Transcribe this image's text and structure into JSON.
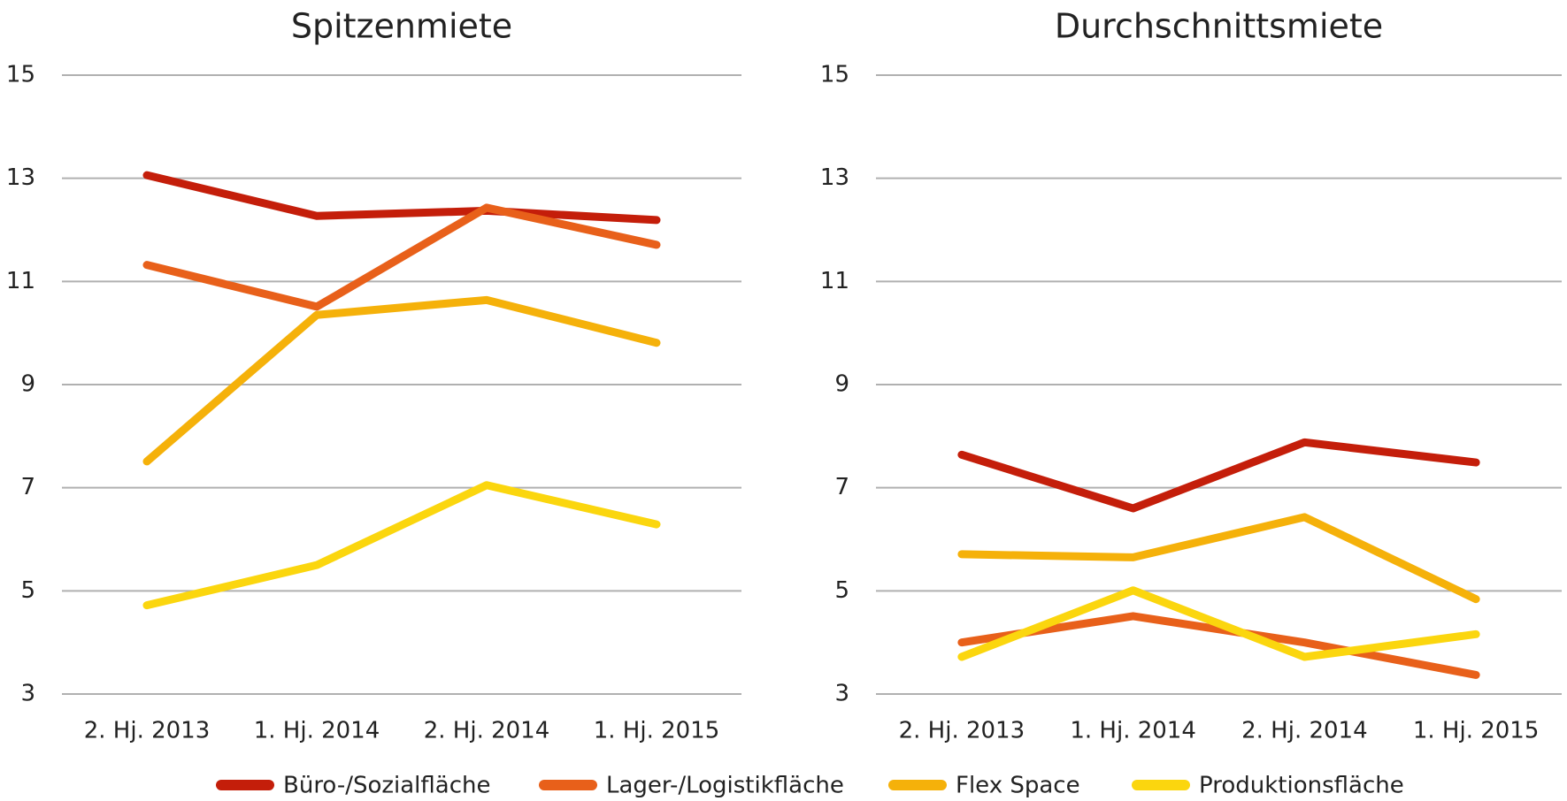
{
  "chart_data": [
    {
      "type": "line",
      "title": "Spitzenmiete",
      "categories": [
        "2. Hj. 2013",
        "1. Hj. 2014",
        "2. Hj. 2014",
        "1. Hj. 2015"
      ],
      "series": [
        {
          "name": "Büro-/Sozialfläche",
          "color": "#c41e0a",
          "values": [
            13.06,
            12.27,
            12.37,
            12.19
          ]
        },
        {
          "name": "Lager-/Logistikfläche",
          "color": "#e8601a",
          "values": [
            11.32,
            10.51,
            12.43,
            11.71
          ]
        },
        {
          "name": "Flex Space",
          "color": "#f5b10a",
          "values": [
            7.51,
            10.35,
            10.64,
            9.81
          ]
        },
        {
          "name": "Produktionsfläche",
          "color": "#fbd60e",
          "values": [
            4.72,
            5.5,
            7.05,
            6.29
          ]
        }
      ],
      "ylim": [
        3,
        15
      ],
      "yticks": [
        3,
        5,
        7,
        9,
        11,
        13,
        15
      ],
      "grid": true
    },
    {
      "type": "line",
      "title": "Durchschnittsmiete",
      "categories": [
        "2. Hj. 2013",
        "1. Hj. 2014",
        "2. Hj. 2014",
        "1. Hj. 2015"
      ],
      "series": [
        {
          "name": "Büro-/Sozialfläche",
          "color": "#c41e0a",
          "values": [
            7.64,
            6.6,
            7.88,
            7.49
          ]
        },
        {
          "name": "Lager-/Logistikfläche",
          "color": "#e8601a",
          "values": [
            4.0,
            4.51,
            4.0,
            3.37
          ]
        },
        {
          "name": "Flex Space",
          "color": "#f5b10a",
          "values": [
            5.71,
            5.65,
            6.43,
            4.84
          ]
        },
        {
          "name": "Produktionsfläche",
          "color": "#fbd60e",
          "values": [
            3.72,
            5.01,
            3.72,
            4.16
          ]
        }
      ],
      "ylim": [
        3,
        15
      ],
      "yticks": [
        3,
        5,
        7,
        9,
        11,
        13,
        15
      ],
      "grid": true
    }
  ]
}
